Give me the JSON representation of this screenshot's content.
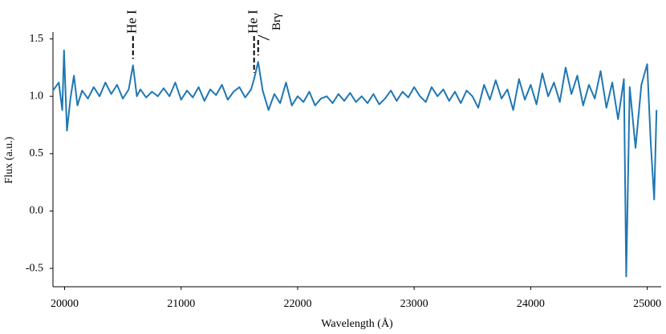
{
  "chart_data": {
    "type": "line",
    "xlabel": "Wavelength (Å)",
    "ylabel": "Flux (a.u.)",
    "x": [
      19900,
      19950,
      19980,
      19995,
      20020,
      20050,
      20080,
      20110,
      20150,
      20200,
      20250,
      20300,
      20350,
      20400,
      20450,
      20500,
      20550,
      20587,
      20620,
      20650,
      20700,
      20750,
      20800,
      20850,
      20900,
      20950,
      21000,
      21050,
      21100,
      21150,
      21200,
      21250,
      21300,
      21350,
      21400,
      21450,
      21500,
      21550,
      21600,
      21626,
      21661,
      21700,
      21750,
      21800,
      21850,
      21900,
      21950,
      22000,
      22050,
      22100,
      22150,
      22200,
      22250,
      22300,
      22350,
      22400,
      22450,
      22500,
      22550,
      22600,
      22650,
      22700,
      22750,
      22800,
      22850,
      22900,
      22950,
      23000,
      23050,
      23100,
      23150,
      23200,
      23250,
      23300,
      23350,
      23400,
      23450,
      23500,
      23550,
      23600,
      23650,
      23700,
      23750,
      23800,
      23850,
      23900,
      23950,
      24000,
      24050,
      24100,
      24150,
      24200,
      24250,
      24300,
      24350,
      24400,
      24450,
      24500,
      24550,
      24600,
      24650,
      24700,
      24750,
      24800,
      24820,
      24850,
      24900,
      24950,
      25000,
      25030,
      25060,
      25080
    ],
    "series": [
      {
        "color": "#1f77b4",
        "values": [
          1.05,
          1.12,
          0.88,
          1.4,
          0.7,
          0.98,
          1.18,
          0.92,
          1.05,
          0.98,
          1.08,
          1.0,
          1.12,
          1.02,
          1.1,
          0.98,
          1.06,
          1.27,
          1.0,
          1.06,
          0.99,
          1.04,
          1.0,
          1.07,
          1.0,
          1.12,
          0.97,
          1.05,
          0.99,
          1.08,
          0.96,
          1.06,
          1.01,
          1.1,
          0.97,
          1.04,
          1.08,
          0.99,
          1.06,
          1.15,
          1.3,
          1.05,
          0.88,
          1.02,
          0.94,
          1.12,
          0.92,
          1.0,
          0.95,
          1.04,
          0.92,
          0.98,
          1.0,
          0.94,
          1.02,
          0.96,
          1.03,
          0.95,
          1.0,
          0.94,
          1.02,
          0.93,
          0.98,
          1.05,
          0.96,
          1.04,
          0.99,
          1.08,
          1.0,
          0.95,
          1.08,
          1.0,
          1.06,
          0.96,
          1.04,
          0.94,
          1.05,
          1.0,
          0.9,
          1.1,
          0.97,
          1.14,
          0.98,
          1.06,
          0.88,
          1.15,
          0.97,
          1.1,
          0.93,
          1.2,
          1.0,
          1.12,
          0.95,
          1.25,
          1.02,
          1.18,
          0.92,
          1.1,
          0.98,
          1.22,
          0.9,
          1.12,
          0.8,
          1.15,
          -0.57,
          1.08,
          0.55,
          1.1,
          1.28,
          0.6,
          0.1,
          0.88
        ]
      }
    ],
    "xlim": [
      19900,
      25120
    ],
    "ylim": [
      -0.66,
      1.56
    ],
    "xticks": [
      20000,
      21000,
      22000,
      23000,
      24000,
      25000
    ],
    "yticks": [
      -0.5,
      {
        "value": 0,
        "label": "0.0"
      },
      0.5,
      {
        "value": 1,
        "label": "1.0"
      },
      1.5
    ],
    "annotations": [
      {
        "label": "He I",
        "x": 20587
      },
      {
        "label": "He I",
        "x": 21626
      },
      {
        "label": "Brγ",
        "x": 21661
      }
    ]
  }
}
